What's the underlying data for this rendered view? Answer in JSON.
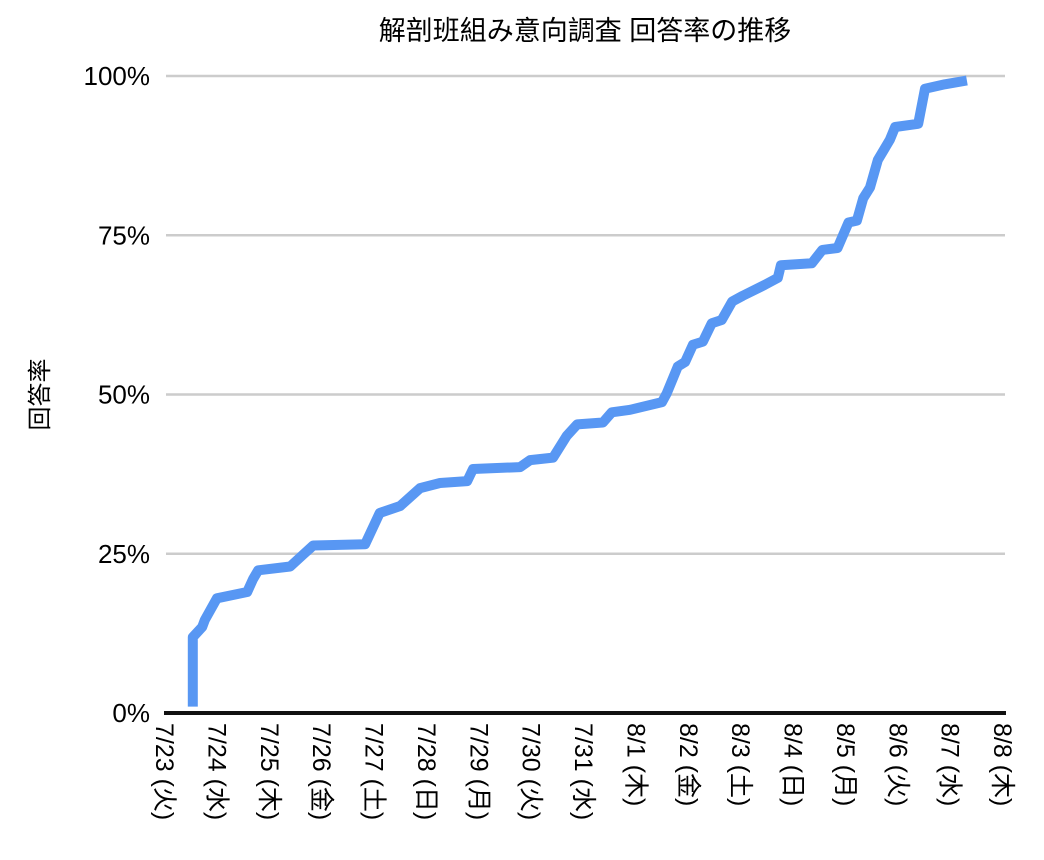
{
  "page": {
    "background": "#ffffff"
  },
  "chart_data": {
    "type": "line",
    "title": "解剖班組み意向調査 回答率の推移",
    "xlabel": "",
    "ylabel": "回答率",
    "ylim": [
      0,
      100
    ],
    "xlim_days": [
      0,
      16
    ],
    "grid": "horizontal",
    "legend_position": "none",
    "y_ticks": [
      {
        "value": 0,
        "label": "0%"
      },
      {
        "value": 25,
        "label": "25%"
      },
      {
        "value": 50,
        "label": "50%"
      },
      {
        "value": 75,
        "label": "75%"
      },
      {
        "value": 100,
        "label": "100%"
      }
    ],
    "x_tick_labels": [
      "7/23 (火)",
      "7/24 (水)",
      "7/25 (木)",
      "7/26 (金)",
      "7/27 (土)",
      "7/28 (日)",
      "7/29 (月)",
      "7/30 (火)",
      "7/31 (水)",
      "8/1 (木)",
      "8/2 (金)",
      "8/3 (土)",
      "8/4 (日)",
      "8/5 (月)",
      "8/6 (火)",
      "8/7 (水)",
      "8/8 (木)"
    ],
    "series": [
      {
        "name": "回答率",
        "color": "#5897f3",
        "points_t_pct": [
          [
            0.53,
            1.0
          ],
          [
            0.53,
            11.9
          ],
          [
            0.71,
            13.5
          ],
          [
            0.76,
            14.6
          ],
          [
            0.99,
            18.0
          ],
          [
            1.57,
            19.0
          ],
          [
            1.68,
            21.0
          ],
          [
            1.78,
            22.4
          ],
          [
            2.39,
            23.0
          ],
          [
            2.63,
            24.8
          ],
          [
            2.83,
            26.3
          ],
          [
            3.82,
            26.5
          ],
          [
            4.1,
            31.4
          ],
          [
            4.49,
            32.5
          ],
          [
            4.87,
            35.3
          ],
          [
            5.25,
            36.1
          ],
          [
            5.77,
            36.4
          ],
          [
            5.88,
            38.3
          ],
          [
            6.78,
            38.6
          ],
          [
            6.97,
            39.7
          ],
          [
            7.41,
            40.1
          ],
          [
            7.67,
            43.5
          ],
          [
            7.87,
            45.3
          ],
          [
            8.36,
            45.6
          ],
          [
            8.53,
            47.2
          ],
          [
            8.88,
            47.6
          ],
          [
            9.49,
            48.8
          ],
          [
            9.58,
            50.2
          ],
          [
            9.79,
            54.4
          ],
          [
            9.93,
            55.1
          ],
          [
            10.08,
            57.8
          ],
          [
            10.27,
            58.3
          ],
          [
            10.44,
            61.2
          ],
          [
            10.63,
            61.7
          ],
          [
            10.83,
            64.6
          ],
          [
            11.03,
            65.5
          ],
          [
            11.45,
            67.2
          ],
          [
            11.7,
            68.3
          ],
          [
            11.76,
            70.3
          ],
          [
            12.35,
            70.6
          ],
          [
            12.55,
            72.7
          ],
          [
            12.84,
            73.0
          ],
          [
            13.05,
            77.0
          ],
          [
            13.21,
            77.3
          ],
          [
            13.33,
            80.8
          ],
          [
            13.46,
            82.5
          ],
          [
            13.61,
            86.8
          ],
          [
            13.84,
            90.0
          ],
          [
            13.94,
            92.0
          ],
          [
            14.38,
            92.5
          ],
          [
            14.51,
            98.0
          ],
          [
            14.89,
            98.7
          ],
          [
            15.31,
            99.3
          ]
        ]
      }
    ]
  },
  "style": {
    "line_color": "#5897f3",
    "line_width": 10,
    "grid_color": "#cccccc",
    "grid_width": 2.5,
    "axis_color": "#111111",
    "axis_width": 4,
    "text_color": "#000000"
  }
}
